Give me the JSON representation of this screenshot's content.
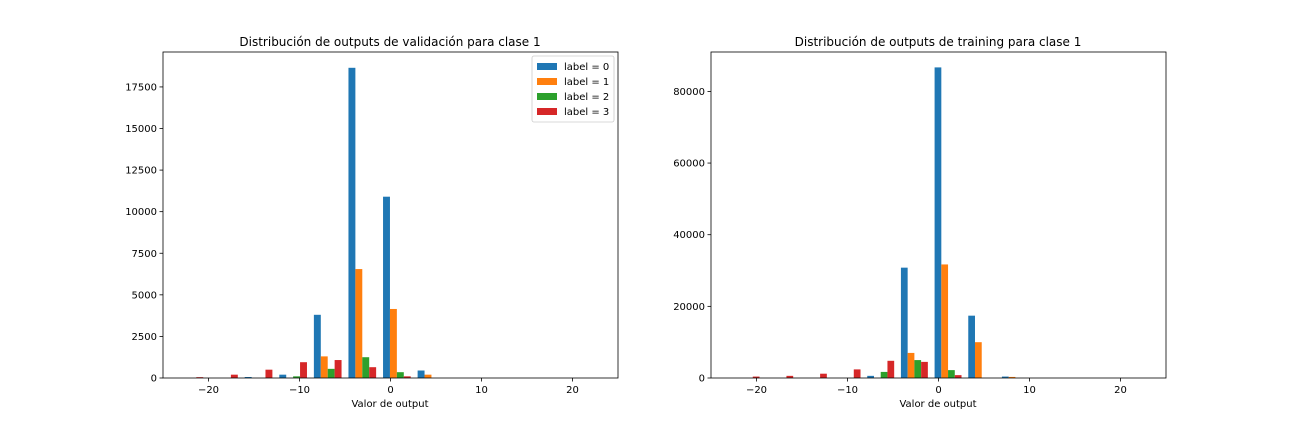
{
  "chart_data": [
    {
      "type": "bar",
      "title": "Distribución de outputs de validación para clase 1",
      "xlabel": "Valor de output",
      "ylabel": "",
      "xlim": [
        -25,
        25
      ],
      "ylim": [
        0,
        19600
      ],
      "x_ticks": [
        -20,
        -10,
        0,
        10,
        20
      ],
      "y_ticks": [
        0,
        2500,
        5000,
        7500,
        10000,
        12500,
        15000,
        17500
      ],
      "x_tick_labels": [
        "−20",
        "−10",
        "0",
        "10",
        "20"
      ],
      "y_tick_labels": [
        "0",
        "2500",
        "5000",
        "7500",
        "10000",
        "12500",
        "15000",
        "17500"
      ],
      "legend": "top-right",
      "bin_edges": [
        -24,
        -20.2,
        -16.4,
        -12.6,
        -8.8,
        -5,
        -1.2,
        2.6,
        6.4,
        10.2,
        14,
        17.8,
        21.6
      ],
      "series": [
        {
          "name": "label = 0",
          "color": "#1f77b4",
          "values": [
            0,
            0,
            60,
            200,
            3800,
            18650,
            10900,
            450,
            0,
            0,
            0,
            0
          ]
        },
        {
          "name": "label = 1",
          "color": "#ff7f0e",
          "values": [
            0,
            0,
            0,
            0,
            1300,
            6550,
            4150,
            200,
            0,
            0,
            0,
            0
          ]
        },
        {
          "name": "label = 2",
          "color": "#2ca02c",
          "values": [
            0,
            0,
            0,
            100,
            550,
            1250,
            350,
            0,
            0,
            0,
            0,
            0
          ]
        },
        {
          "name": "label = 3",
          "color": "#d62728",
          "values": [
            50,
            200,
            500,
            950,
            1080,
            650,
            100,
            0,
            0,
            0,
            0,
            0
          ]
        }
      ]
    },
    {
      "type": "bar",
      "title": "Distribución de outputs de training para clase 1",
      "xlabel": "Valor de output",
      "ylabel": "",
      "xlim": [
        -25,
        25
      ],
      "ylim": [
        0,
        91000
      ],
      "x_ticks": [
        -20,
        -10,
        0,
        10,
        20
      ],
      "y_ticks": [
        0,
        20000,
        40000,
        60000,
        80000
      ],
      "x_tick_labels": [
        "−20",
        "−10",
        "0",
        "10",
        "20"
      ],
      "y_tick_labels": [
        "0",
        "20000",
        "40000",
        "60000",
        "80000"
      ],
      "legend": "none",
      "bin_edges": [
        -23,
        -19.3,
        -15.6,
        -11.9,
        -8.2,
        -4.5,
        -0.8,
        2.9,
        6.6,
        10.3,
        14,
        17.7,
        21.4
      ],
      "series": [
        {
          "name": "label = 0",
          "color": "#1f77b4",
          "values": [
            0,
            0,
            0,
            0,
            600,
            30800,
            86700,
            17400,
            400,
            0,
            0,
            0
          ]
        },
        {
          "name": "label = 1",
          "color": "#ff7f0e",
          "values": [
            0,
            0,
            0,
            0,
            0,
            7000,
            31700,
            10000,
            300,
            0,
            0,
            0
          ]
        },
        {
          "name": "label = 2",
          "color": "#2ca02c",
          "values": [
            0,
            0,
            0,
            0,
            1700,
            5000,
            2200,
            0,
            0,
            0,
            0,
            0
          ]
        },
        {
          "name": "label = 3",
          "color": "#d62728",
          "values": [
            400,
            600,
            1200,
            2400,
            4800,
            4500,
            800,
            0,
            0,
            0,
            0,
            0
          ]
        }
      ]
    }
  ]
}
